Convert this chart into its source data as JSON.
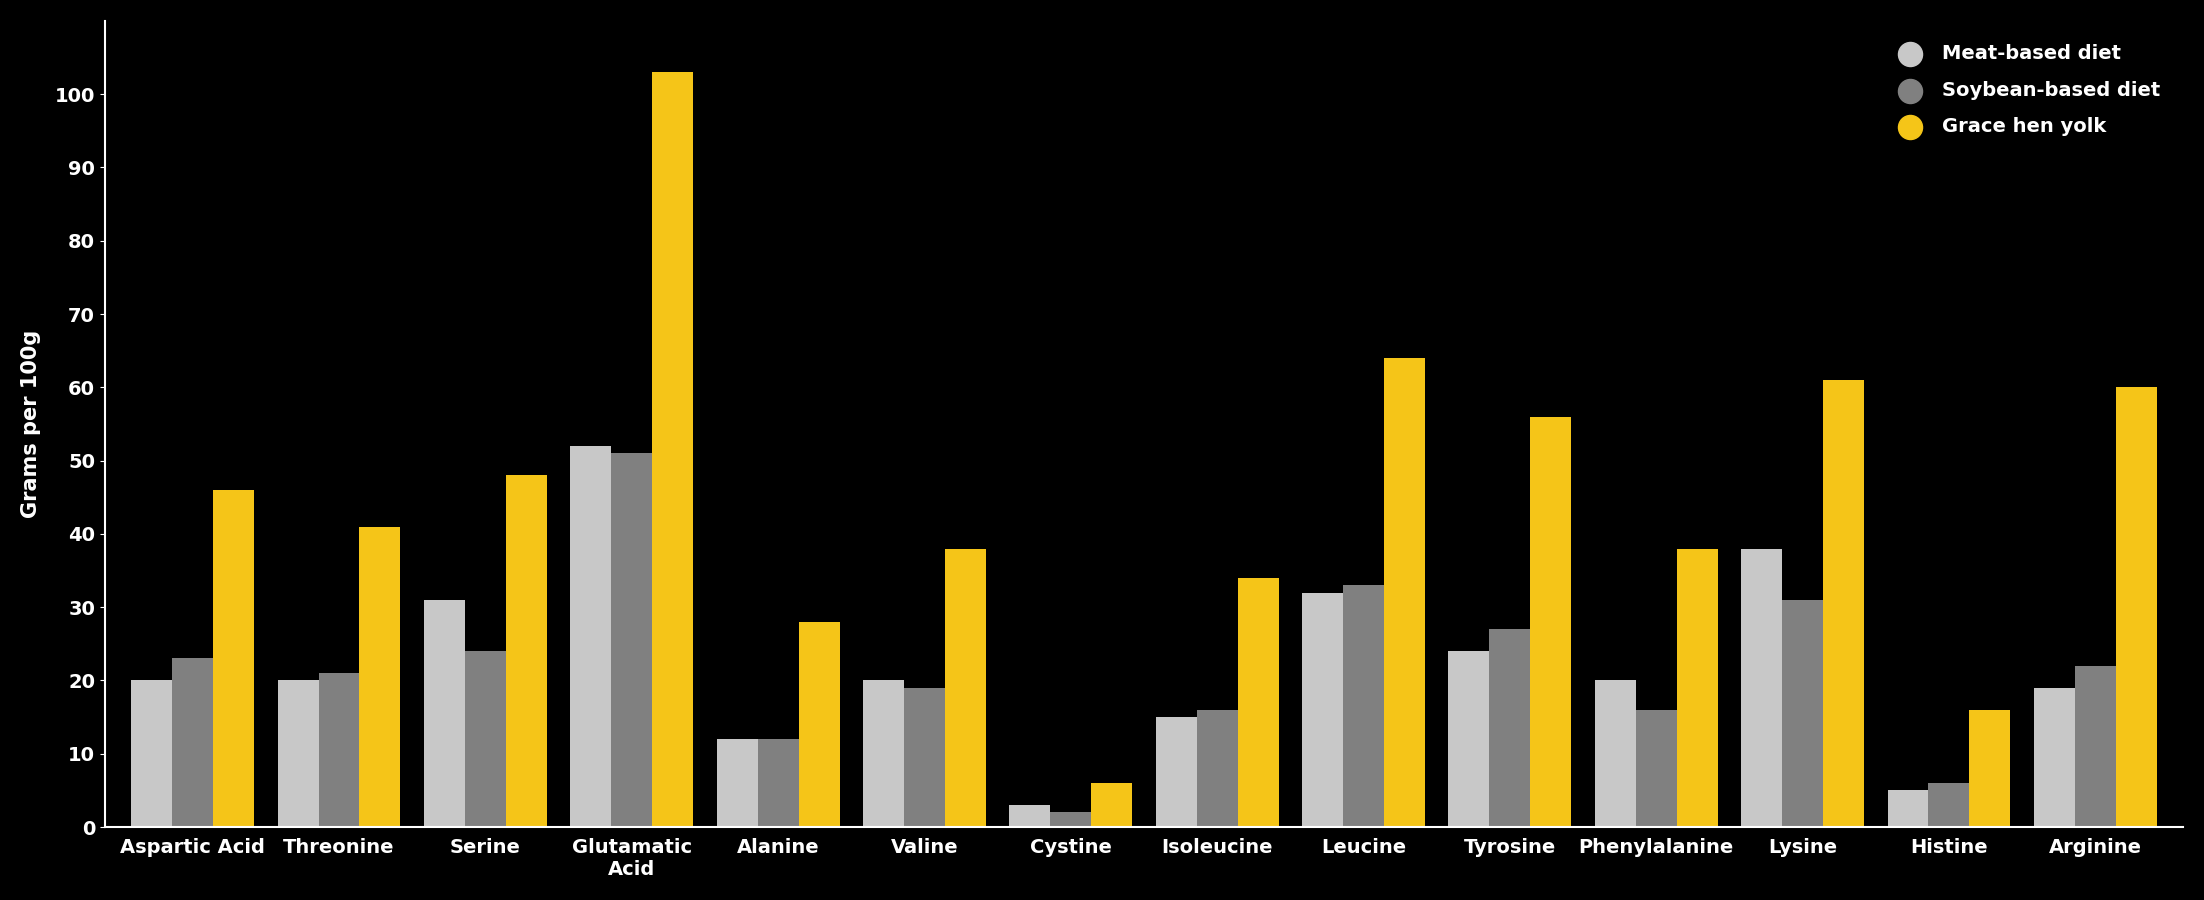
{
  "ylabel": "Grams per 100g",
  "background_color": "#000000",
  "text_color": "#ffffff",
  "categories": [
    "Aspartic Acid",
    "Threonine",
    "Serine",
    "Glutamatic\nAcid",
    "Alanine",
    "Valine",
    "Cystine",
    "Isoleucine",
    "Leucine",
    "Tyrosine",
    "Phenylalanine",
    "Lysine",
    "Histine",
    "Arginine"
  ],
  "series": [
    {
      "label": "Meat-based diet",
      "color": "#c8c8c8",
      "values": [
        20,
        20,
        31,
        52,
        12,
        20,
        3,
        15,
        32,
        24,
        20,
        38,
        5,
        19
      ]
    },
    {
      "label": "Soybean-based diet",
      "color": "#808080",
      "values": [
        23,
        21,
        24,
        51,
        12,
        19,
        2,
        16,
        33,
        27,
        16,
        31,
        6,
        22
      ]
    },
    {
      "label": "Grace hen yolk",
      "color": "#f5c518",
      "values": [
        46,
        41,
        48,
        103,
        28,
        38,
        6,
        34,
        64,
        56,
        38,
        61,
        16,
        60
      ]
    }
  ],
  "ylim": [
    0,
    110
  ],
  "yticks": [
    0,
    10,
    20,
    30,
    40,
    50,
    60,
    70,
    80,
    90,
    100
  ],
  "bar_width": 0.28,
  "legend_marker_size": 300,
  "tick_fontsize": 14,
  "ylabel_fontsize": 15,
  "legend_fontsize": 14
}
